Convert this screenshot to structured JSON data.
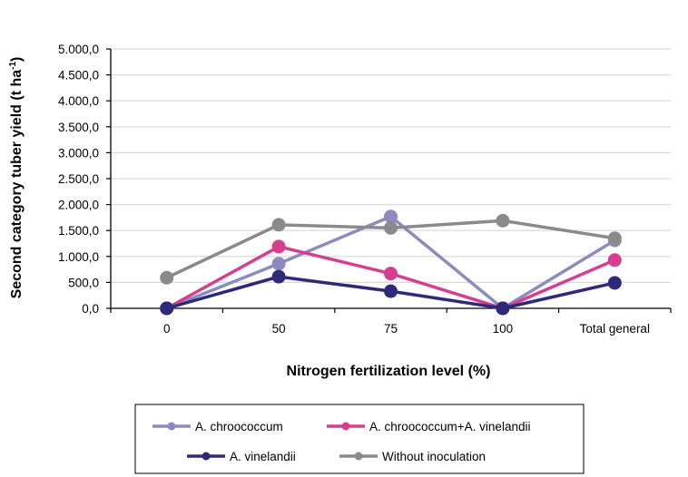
{
  "chart_data": {
    "type": "line",
    "title": "",
    "xlabel": "Nitrogen fertilization level (%)",
    "ylabel": "Second category tuber yield (t ha",
    "ylabel_superscript": "-1",
    "ylabel_suffix": ")",
    "categories": [
      "0",
      "50",
      "75",
      "100",
      "Total general"
    ],
    "ylim": [
      0,
      5000
    ],
    "y_ticks": [
      0,
      500,
      1000,
      1500,
      2000,
      2500,
      3000,
      3500,
      4000,
      4500,
      5000
    ],
    "y_tick_labels": [
      "0,0",
      "500,0",
      "1.000,0",
      "1.500,0",
      "2.000,0",
      "2.500,0",
      "3.000,0",
      "3.500,0",
      "4.000,0",
      "4.500,0",
      "5.000,0"
    ],
    "grid": true,
    "legend_position": "bottom",
    "series": [
      {
        "name": "A. chroococcum",
        "color": "#8B8BC0",
        "values": [
          0,
          860,
          1770,
          0,
          1310
        ]
      },
      {
        "name": "A. chroococcum+A. vinelandii",
        "color": "#D63F8F",
        "values": [
          0,
          1190,
          670,
          0,
          930
        ]
      },
      {
        "name": "A. vinelandii",
        "color": "#2E2A7A",
        "values": [
          0,
          610,
          330,
          0,
          490
        ]
      },
      {
        "name": "Without inoculation",
        "color": "#8A8A8A",
        "values": [
          590,
          1610,
          1550,
          1690,
          1350
        ]
      }
    ]
  }
}
